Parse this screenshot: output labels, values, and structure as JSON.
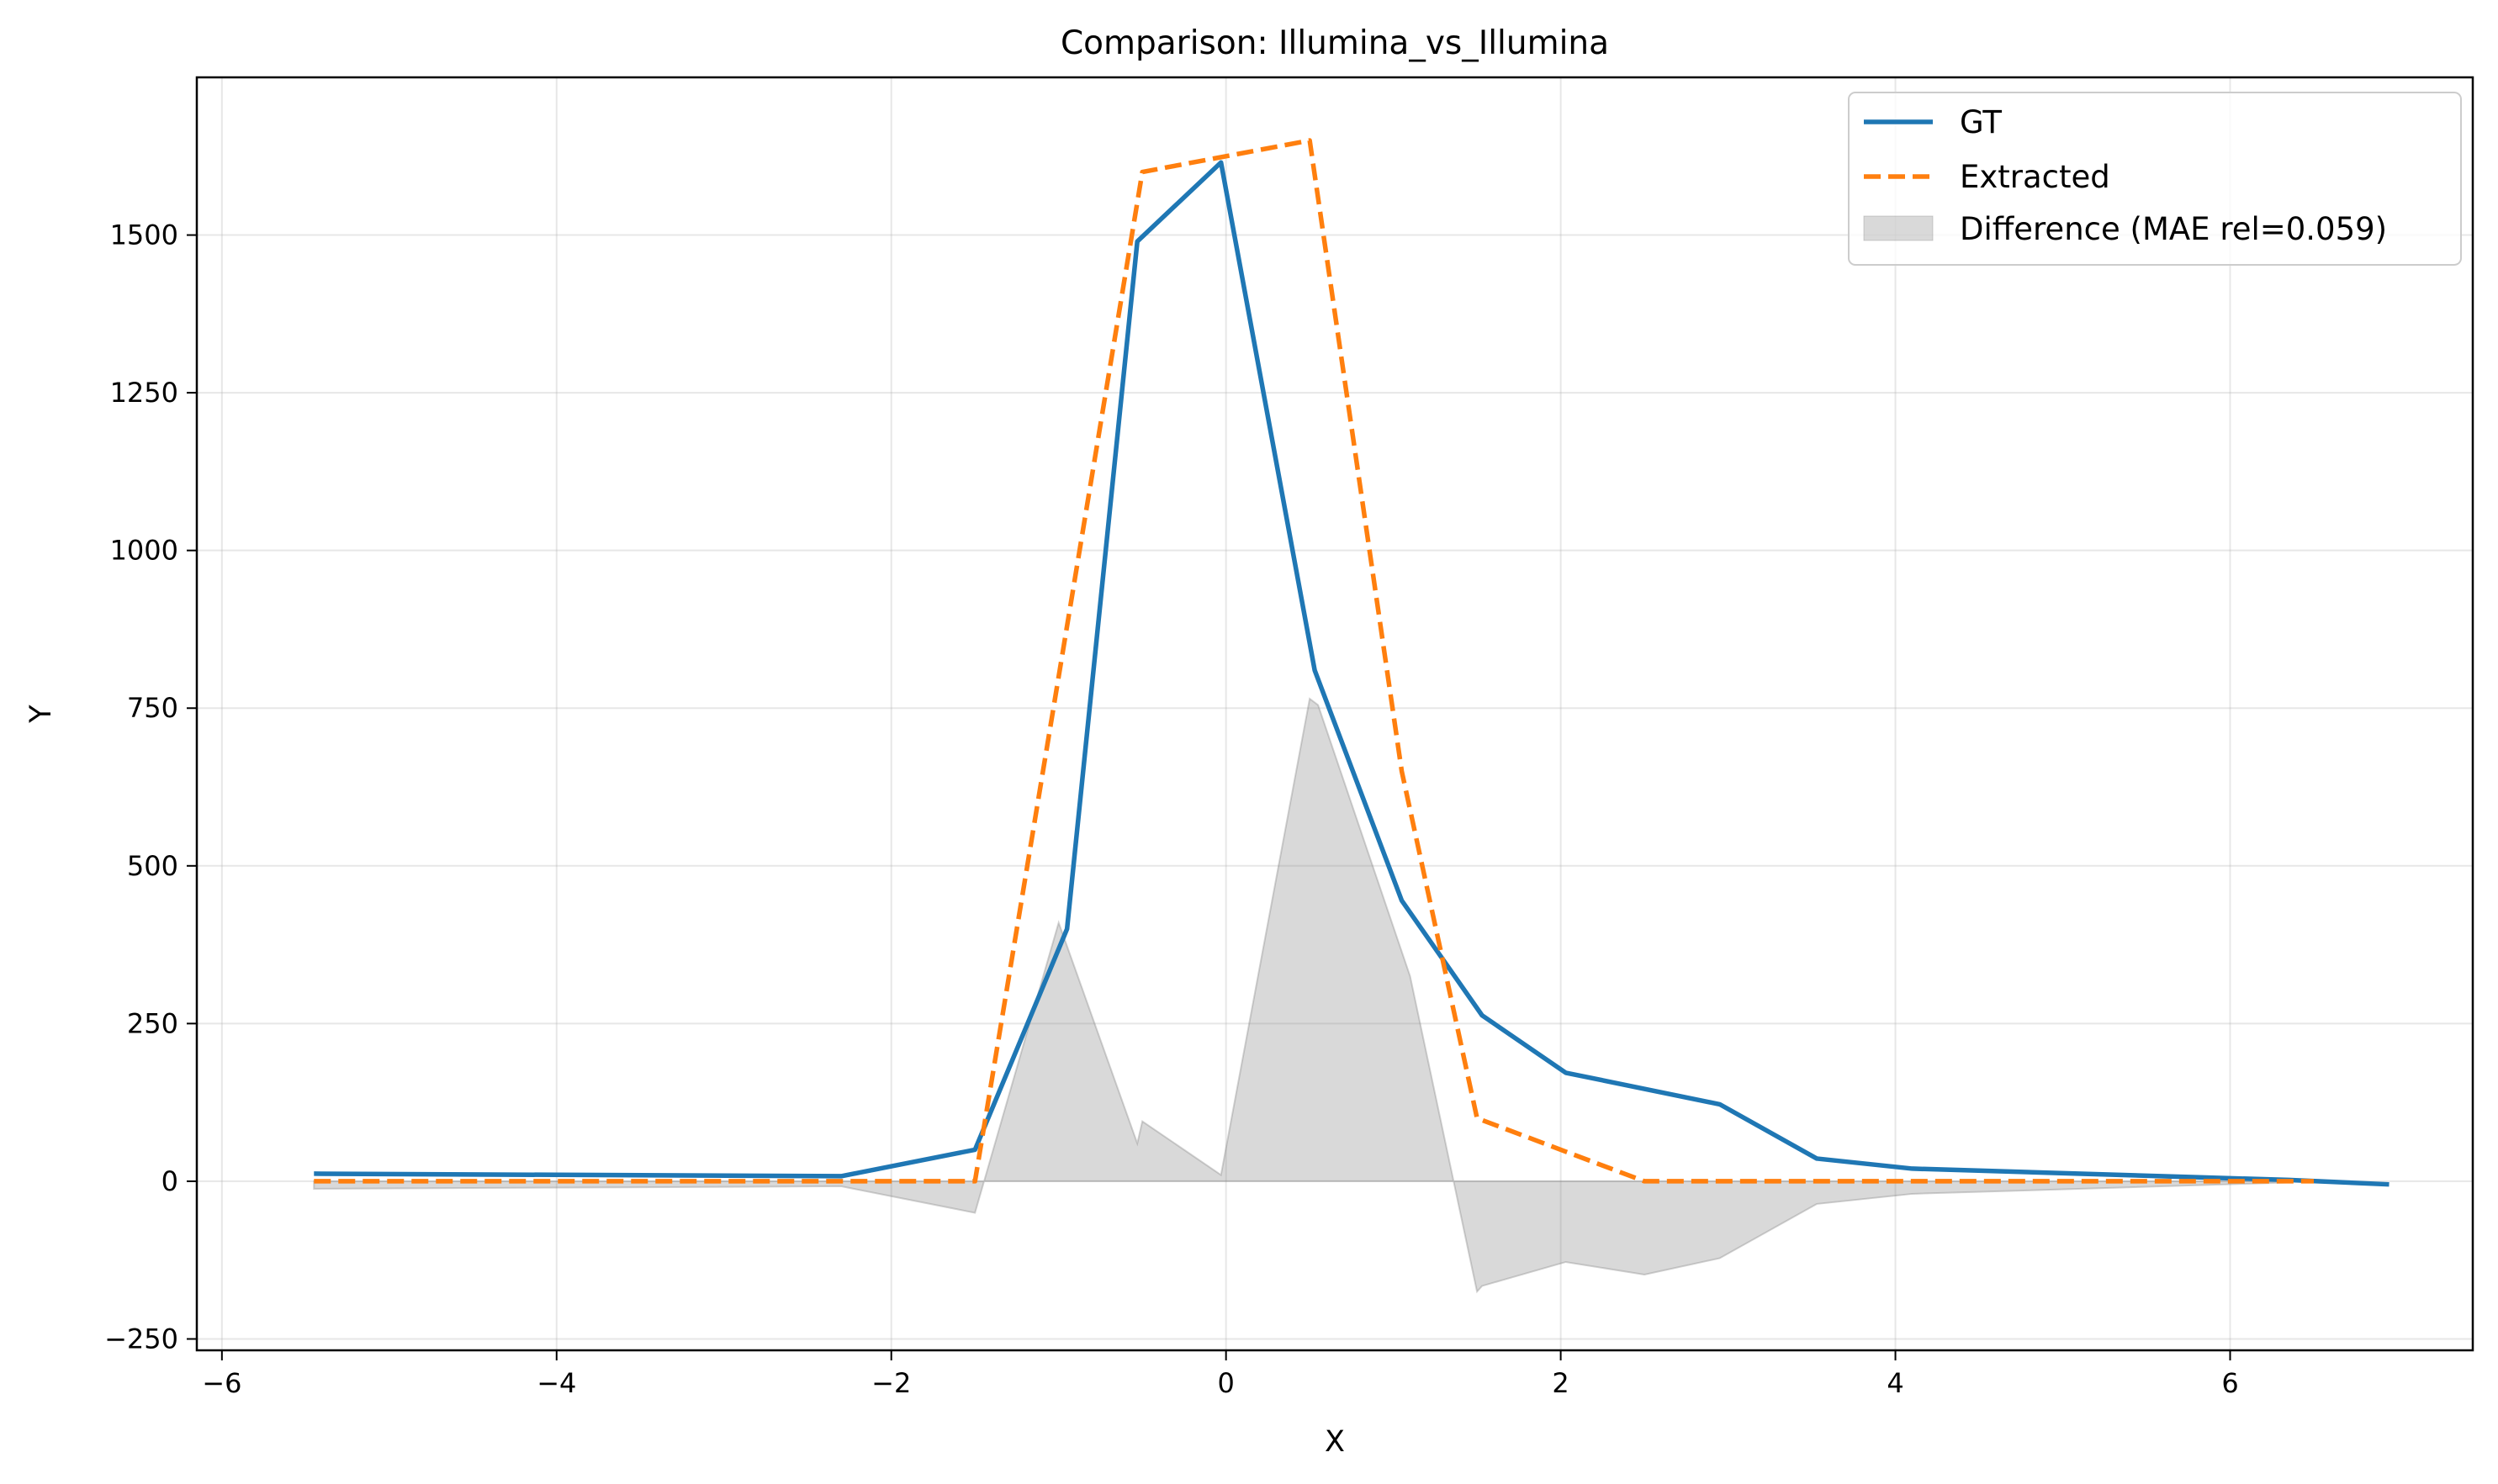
{
  "chart_data": {
    "type": "line",
    "title": "Comparison: Illumina_vs_Illumina",
    "xlabel": "X",
    "ylabel": "Y",
    "xlim": [
      -6.15,
      7.45
    ],
    "ylim": [
      -268,
      1750
    ],
    "xticks": [
      -6,
      -4,
      -2,
      0,
      2,
      4,
      6
    ],
    "yticks": [
      -250,
      0,
      250,
      500,
      750,
      1000,
      1250,
      1500
    ],
    "xtick_labels": [
      "−6",
      "−4",
      "−2",
      "0",
      "2",
      "4",
      "6"
    ],
    "ytick_labels": [
      "−250",
      "0",
      "250",
      "500",
      "750",
      "1000",
      "1250",
      "1500"
    ],
    "grid": true,
    "legend_position": "top-right",
    "series": [
      {
        "name": "GT",
        "style": "solid",
        "color": "#1f77b4",
        "points": [
          [
            -5.45,
            12
          ],
          [
            -2.3,
            8
          ],
          [
            -1.5,
            50
          ],
          [
            -0.95,
            400
          ],
          [
            -0.53,
            1490
          ],
          [
            -0.03,
            1615
          ],
          [
            0.53,
            810
          ],
          [
            1.05,
            445
          ],
          [
            1.53,
            263
          ],
          [
            2.03,
            172
          ],
          [
            2.95,
            122
          ],
          [
            3.53,
            36
          ],
          [
            4.1,
            20
          ],
          [
            6.35,
            2
          ],
          [
            6.95,
            -5
          ]
        ]
      },
      {
        "name": "Extracted",
        "style": "dashed",
        "color": "#ff7f0e",
        "points": [
          [
            -5.45,
            0
          ],
          [
            -1.5,
            0
          ],
          [
            -0.5,
            1600
          ],
          [
            0.5,
            1650
          ],
          [
            1.05,
            650
          ],
          [
            1.5,
            100
          ],
          [
            2.5,
            0
          ],
          [
            6.5,
            0
          ]
        ]
      }
    ],
    "difference": {
      "name": "Difference (MAE rel=0.059)",
      "color": "#808080",
      "points": [
        [
          -5.45,
          -12
        ],
        [
          -2.3,
          -8
        ],
        [
          -1.5,
          -50
        ],
        [
          -1.0,
          410
        ],
        [
          -0.53,
          60
        ],
        [
          -0.5,
          95
        ],
        [
          -0.03,
          10
        ],
        [
          0.5,
          765
        ],
        [
          0.55,
          755
        ],
        [
          1.1,
          325
        ],
        [
          1.5,
          -175
        ],
        [
          1.53,
          -166
        ],
        [
          2.03,
          -128
        ],
        [
          2.5,
          -148
        ],
        [
          2.95,
          -122
        ],
        [
          3.53,
          -36
        ],
        [
          4.1,
          -20
        ],
        [
          6.35,
          -2
        ]
      ]
    }
  }
}
